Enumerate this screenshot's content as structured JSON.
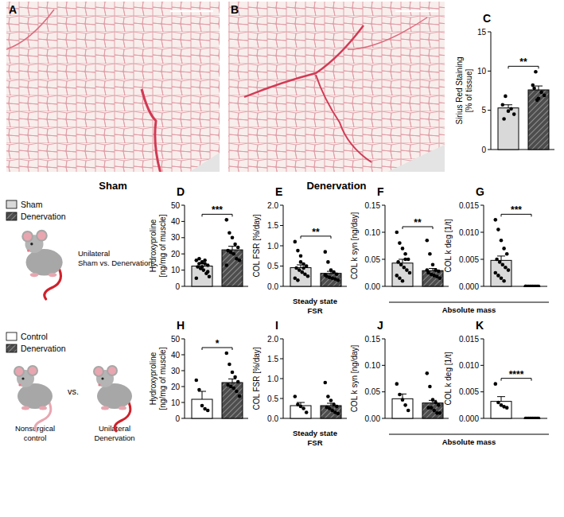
{
  "images": [
    {
      "label": "A",
      "caption": "Sham"
    },
    {
      "label": "B",
      "caption": "Denervation"
    }
  ],
  "legends": [
    {
      "items": [
        {
          "name": "Sham",
          "color": "#d9d9d9"
        },
        {
          "name": "Denervation",
          "color": "#4d4d4d"
        }
      ],
      "caption": [
        "Unilateral",
        "Sham vs. Denervation"
      ]
    },
    {
      "items": [
        {
          "name": "Control",
          "color": "#ffffff"
        },
        {
          "name": "Denervation",
          "color": "#4d4d4d"
        }
      ],
      "left_caption": [
        "Nonsurgical",
        "control"
      ],
      "middle": "vs.",
      "right_caption": [
        "Unilateral",
        "Denervation"
      ]
    }
  ],
  "group_labels": [
    "Absolute mass",
    "Absolute mass"
  ],
  "chart_data": [
    {
      "type": "bar",
      "title": "C",
      "y_label": [
        "Sirius Red Staining",
        "[% of tissue]"
      ],
      "categories": [
        null,
        null
      ],
      "values": [
        5.3,
        7.6
      ],
      "errors": [
        0.4,
        0.5
      ],
      "points": [
        [
          5.7,
          6.8,
          4.9,
          5.2,
          4.5,
          3.9
        ],
        [
          8.2,
          9.9,
          6.5,
          7.3,
          6.9,
          7.8,
          6.3
        ]
      ],
      "colors": [
        "#d9d9d9",
        "#4d4d4d"
      ],
      "ylim": [
        0,
        15
      ],
      "yticks": [
        0,
        5,
        10,
        15
      ],
      "significance": "**"
    },
    {
      "type": "bar",
      "title": "D",
      "y_label": [
        "Hydroxyproline",
        "[ng/mg of muscle]"
      ],
      "categories": [
        null,
        null
      ],
      "values": [
        12.5,
        22.5
      ],
      "errors": [
        1.5,
        2.2
      ],
      "points": [
        [
          16,
          17,
          15,
          14,
          13,
          12,
          11,
          10,
          8,
          6,
          5,
          14,
          12,
          16,
          9
        ],
        [
          41,
          33,
          30,
          26,
          24,
          22,
          21,
          20,
          17,
          16,
          13
        ]
      ],
      "colors": [
        "#d9d9d9",
        "#4d4d4d"
      ],
      "ylim": [
        0,
        50
      ],
      "yticks": [
        0,
        10,
        20,
        30,
        40,
        50
      ],
      "significance": "***"
    },
    {
      "type": "bar",
      "title": "E",
      "y_label": [
        "COL FSR [%/day]"
      ],
      "x_label": [
        "Steady state",
        "FSR"
      ],
      "categories": [
        null,
        null
      ],
      "values": [
        0.46,
        0.32
      ],
      "errors": [
        0.07,
        0.05
      ],
      "points": [
        [
          1.1,
          0.88,
          0.75,
          0.55,
          0.5,
          0.45,
          0.4,
          0.35,
          0.3,
          0.25,
          0.2,
          0.15,
          0.6,
          0.45
        ],
        [
          0.85,
          0.6,
          0.4,
          0.35,
          0.3,
          0.25,
          0.22,
          0.2,
          0.18,
          0.15,
          0.28
        ]
      ],
      "colors": [
        "#d9d9d9",
        "#4d4d4d"
      ],
      "ylim": [
        0,
        2
      ],
      "yticks": [
        {
          "value": 0,
          "label": "0.0"
        },
        0.5,
        {
          "value": 1,
          "label": "1.0"
        },
        1.5,
        {
          "value": 2,
          "label": "2.0"
        }
      ],
      "significance": "**"
    },
    {
      "type": "bar",
      "title": "F",
      "y_label": [
        "COL k syn [ng/day]"
      ],
      "categories": [
        null,
        null
      ],
      "values": [
        0.043,
        0.029
      ],
      "errors": [
        0.007,
        0.004
      ],
      "points": [
        [
          0.1,
          0.08,
          0.07,
          0.06,
          0.05,
          0.045,
          0.04,
          0.035,
          0.03,
          0.025,
          0.02,
          0.015,
          0.01,
          0.05
        ],
        [
          0.085,
          0.06,
          0.04,
          0.03,
          0.028,
          0.025,
          0.022,
          0.02,
          0.018,
          0.015,
          0.03
        ]
      ],
      "colors": [
        "#d9d9d9",
        "#4d4d4d"
      ],
      "ylim": [
        0,
        0.15
      ],
      "yticks": [
        {
          "value": 0,
          "label": "0.00"
        },
        0.05,
        {
          "value": 0.1,
          "label": "0.10"
        },
        0.15
      ],
      "significance": "**"
    },
    {
      "type": "bar",
      "title": "G",
      "y_label": [
        "COL k deg [1/t]"
      ],
      "categories": [
        null,
        null
      ],
      "values": [
        0.0048,
        0
      ],
      "errors": [
        0.0008,
        0
      ],
      "points": [
        [
          0.0123,
          0.0105,
          0.0085,
          0.007,
          0.006,
          0.005,
          0.0045,
          0.004,
          0.0035,
          0.003,
          0.0025,
          0.002,
          0.0015,
          0.001
        ],
        [
          0,
          0,
          0,
          0,
          0,
          0,
          0,
          0,
          0,
          0,
          0
        ]
      ],
      "colors": [
        "#d9d9d9",
        "#4d4d4d"
      ],
      "ylim": [
        0,
        0.015
      ],
      "yticks": [
        {
          "value": 0,
          "label": "0.000"
        },
        0.005,
        {
          "value": 0.01,
          "label": "0.010"
        },
        0.015
      ],
      "significance": "***"
    },
    {
      "type": "bar",
      "title": "H",
      "y_label": [
        "Hydroxyproline",
        "[ng/mg of muscle]"
      ],
      "categories": [
        null,
        null
      ],
      "values": [
        12,
        22.5
      ],
      "errors": [
        5,
        2.3
      ],
      "points": [
        [
          24,
          18,
          8,
          6,
          5
        ],
        [
          41,
          34,
          29,
          26,
          23,
          21,
          20,
          19,
          17,
          14
        ]
      ],
      "colors": [
        "#ffffff",
        "#4d4d4d"
      ],
      "ylim": [
        0,
        50
      ],
      "yticks": [
        0,
        10,
        20,
        30,
        40,
        50
      ],
      "significance": "*"
    },
    {
      "type": "bar",
      "title": "I",
      "y_label": [
        "COL FSR [%/day]"
      ],
      "x_label": [
        "Steady state",
        "FSR"
      ],
      "categories": [
        null,
        null
      ],
      "values": [
        0.32,
        0.32
      ],
      "errors": [
        0.08,
        0.06
      ],
      "points": [
        [
          0.55,
          0.35,
          0.3,
          0.25,
          0.15
        ],
        [
          0.9,
          0.55,
          0.45,
          0.35,
          0.3,
          0.28,
          0.25,
          0.2,
          0.15,
          0.12
        ]
      ],
      "colors": [
        "#ffffff",
        "#4d4d4d"
      ],
      "ylim": [
        0,
        2
      ],
      "yticks": [
        {
          "value": 0,
          "label": "0.0"
        },
        0.5,
        {
          "value": 1,
          "label": "1.0"
        },
        1.5,
        {
          "value": 2,
          "label": "2.0"
        }
      ]
    },
    {
      "type": "bar",
      "title": "J",
      "y_label": [
        "COL k syn [ng/day]"
      ],
      "categories": [
        null,
        null
      ],
      "values": [
        0.037,
        0.029
      ],
      "errors": [
        0.009,
        0.005
      ],
      "points": [
        [
          0.065,
          0.045,
          0.035,
          0.025,
          0.015
        ],
        [
          0.085,
          0.06,
          0.035,
          0.03,
          0.025,
          0.02,
          0.02,
          0.015,
          0.01,
          0.01
        ]
      ],
      "colors": [
        "#ffffff",
        "#4d4d4d"
      ],
      "ylim": [
        0,
        0.15
      ],
      "yticks": [
        {
          "value": 0,
          "label": "0.00"
        },
        0.05,
        {
          "value": 0.1,
          "label": "0.10"
        },
        0.15
      ]
    },
    {
      "type": "bar",
      "title": "K",
      "y_label": [
        "COL k deg [1/t]"
      ],
      "categories": [
        null,
        null
      ],
      "values": [
        0.0032,
        0
      ],
      "errors": [
        0.0009,
        0
      ],
      "points": [
        [
          0.0065,
          0.003,
          0.0025,
          0.0022,
          0.002
        ],
        [
          0,
          0,
          0,
          0,
          0,
          0,
          0,
          0,
          0,
          0
        ]
      ],
      "colors": [
        "#ffffff",
        "#4d4d4d"
      ],
      "ylim": [
        0,
        0.015
      ],
      "yticks": [
        {
          "value": 0,
          "label": "0.000"
        },
        0.005,
        {
          "value": 0.01,
          "label": "0.010"
        },
        0.015
      ],
      "significance": "****"
    }
  ]
}
